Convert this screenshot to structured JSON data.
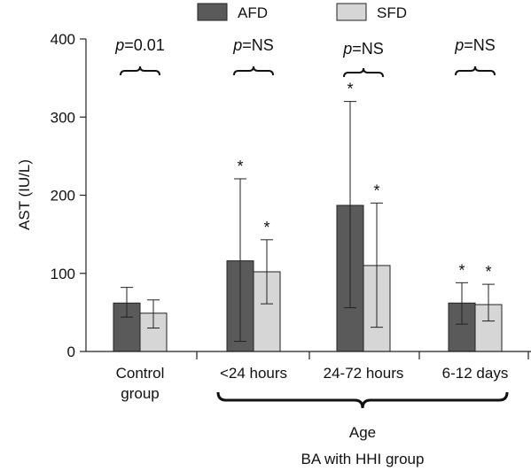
{
  "chart_data": {
    "type": "bar",
    "ylabel": "AST (IU/L)",
    "ylim": [
      0,
      400
    ],
    "yticks": [
      0,
      100,
      200,
      300,
      400
    ],
    "legend": {
      "placement": "top",
      "entries": [
        {
          "name": "AFD",
          "color": "#5a5a5a"
        },
        {
          "name": "SFD",
          "color": "#d6d6d6"
        }
      ]
    },
    "categories": [
      {
        "lines": [
          "Control",
          "group"
        ]
      },
      {
        "lines": [
          "<24 hours"
        ]
      },
      {
        "lines": [
          "24-72 hours"
        ]
      },
      {
        "lines": [
          "6-12 days"
        ]
      }
    ],
    "series": [
      {
        "name": "AFD",
        "values": [
          62,
          116,
          187,
          62
        ],
        "error_upper": [
          82,
          221,
          320,
          88
        ],
        "error_lower": [
          44,
          13,
          56,
          35
        ],
        "stars": [
          false,
          true,
          true,
          true
        ]
      },
      {
        "name": "SFD",
        "values": [
          49,
          102,
          110,
          60
        ],
        "error_upper": [
          66,
          143,
          190,
          86
        ],
        "error_lower": [
          30,
          61,
          31,
          39
        ],
        "stars": [
          false,
          true,
          true,
          true
        ]
      }
    ],
    "comparisons": [
      {
        "italic": "p",
        "rest": "=0.01"
      },
      {
        "italic": "p",
        "rest": "=NS"
      },
      {
        "italic": "p",
        "rest": "=NS"
      },
      {
        "italic": "p",
        "rest": "=NS"
      }
    ],
    "star_symbol": "*",
    "group_brace": {
      "from_category": 1,
      "to_category": 3,
      "label": "Age",
      "sublabel": "BA with HHI group"
    }
  }
}
